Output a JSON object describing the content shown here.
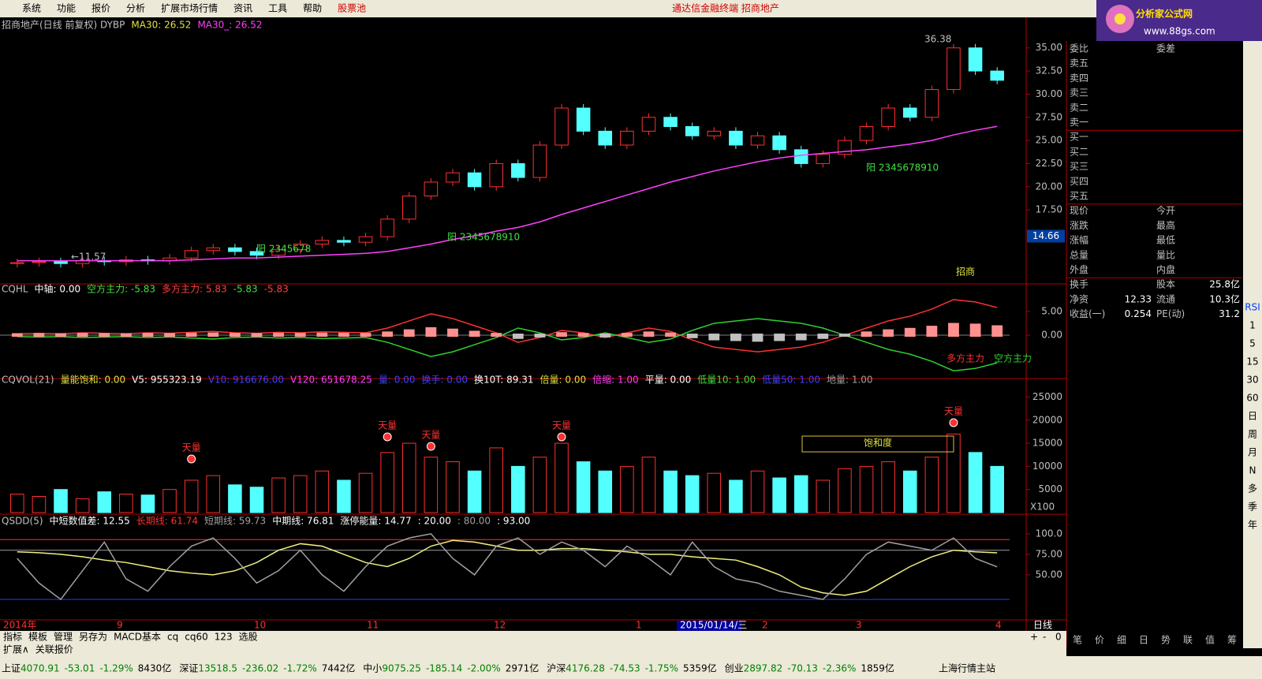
{
  "menu": [
    "系统",
    "功能",
    "报价",
    "分析",
    "扩展市场行情",
    "资讯",
    "工具",
    "帮助",
    "股票池"
  ],
  "title_bar": "通达信金融终端  招商地产",
  "logo": {
    "name": "分析家公式网",
    "url": "www.88gs.com"
  },
  "panels": {
    "price": {
      "header": [
        {
          "text": "招商地产(日线 前复权) DYBP",
          "color": "#c0c0c0"
        },
        {
          "text": "MA30: 26.52",
          "color": "#e0e040"
        },
        {
          "text": "MA30_: 26.52",
          "color": "#ff40ff"
        }
      ],
      "ylim": [
        9.5,
        38.3
      ],
      "yticks": [
        {
          "value": 35,
          "label": "35.00"
        },
        {
          "value": 32.5,
          "label": "32.50"
        },
        {
          "value": 30,
          "label": "30.00"
        },
        {
          "value": 27.5,
          "label": "27.50"
        },
        {
          "value": 25,
          "label": "25.00"
        },
        {
          "value": 22.5,
          "label": "22.50"
        },
        {
          "value": 20,
          "label": "20.00"
        },
        {
          "value": 17.5,
          "label": "17.50"
        }
      ],
      "current_label": "14.66",
      "close": [
        11.8,
        11.9,
        11.7,
        12.0,
        11.9,
        12.1,
        12.0,
        12.3,
        13.1,
        13.4,
        13.0,
        12.6,
        13.2,
        13.8,
        14.2,
        14.0,
        14.6,
        16.5,
        19.0,
        20.5,
        21.5,
        20.0,
        22.5,
        21.0,
        24.5,
        28.5,
        26.0,
        24.5,
        26.0,
        27.5,
        26.5,
        25.5,
        26.0,
        24.5,
        25.5,
        24.0,
        22.5,
        23.5,
        25.0,
        26.5,
        28.5,
        27.5,
        30.5,
        35.0,
        32.5,
        31.5
      ],
      "ma30": [
        12.0,
        12.0,
        12.0,
        12.0,
        12.0,
        12.0,
        12.0,
        12.0,
        12.1,
        12.2,
        12.3,
        12.3,
        12.4,
        12.5,
        12.6,
        12.7,
        12.8,
        13.0,
        13.4,
        13.8,
        14.3,
        14.7,
        15.2,
        15.6,
        16.2,
        17.0,
        17.7,
        18.4,
        19.1,
        19.8,
        20.5,
        21.1,
        21.7,
        22.2,
        22.7,
        23.1,
        23.4,
        23.6,
        23.8,
        24.0,
        24.3,
        24.6,
        25.0,
        25.6,
        26.1,
        26.52
      ],
      "annotations": [
        "36.38",
        "←11.57",
        "阳 2345678",
        "阳 2345678910",
        "阳 2345678910",
        "招商"
      ]
    },
    "cqhl": {
      "header": [
        {
          "text": "CQHL",
          "color": "#c0c0c0"
        },
        {
          "text": "中轴: 0.00",
          "color": "#ffffff"
        },
        {
          "text": "空方主力: -5.83",
          "color": "#40e040"
        },
        {
          "text": "多方主力: 5.83",
          "color": "#ff4040"
        },
        {
          "text": "-5.83",
          "color": "#40e040"
        },
        {
          "text": "-5.83",
          "color": "#ff4040"
        }
      ],
      "ylim": [
        -8.3,
        10.8
      ],
      "yticks": [
        {
          "value": 5,
          "label": "5.00"
        },
        {
          "value": 0,
          "label": "0.00"
        }
      ],
      "series": [
        {
          "name": "多方主力",
          "color": "#ff3030",
          "values": [
            0.3,
            0.4,
            0.3,
            0.5,
            0.4,
            0.3,
            0.5,
            0.4,
            0.6,
            0.8,
            0.5,
            0.4,
            0.6,
            0.5,
            0.7,
            0.6,
            0.5,
            1.5,
            3.0,
            4.5,
            3.5,
            2.0,
            0.5,
            -1.5,
            -0.5,
            1.0,
            0.5,
            -0.5,
            0.5,
            1.5,
            0.8,
            -1.0,
            -2.5,
            -3.0,
            -3.5,
            -3.0,
            -2.5,
            -1.5,
            0.0,
            1.5,
            3.0,
            4.0,
            5.5,
            7.5,
            7.0,
            5.83
          ]
        },
        {
          "name": "空方主力",
          "color": "#30d030",
          "values": [
            -0.3,
            -0.4,
            -0.3,
            -0.5,
            -0.4,
            -0.3,
            -0.5,
            -0.4,
            -0.6,
            -0.8,
            -0.5,
            -0.4,
            -0.6,
            -0.5,
            -0.7,
            -0.6,
            -0.5,
            -1.5,
            -3.0,
            -4.5,
            -3.5,
            -2.0,
            -0.5,
            1.5,
            0.5,
            -1.0,
            -0.5,
            0.5,
            -0.5,
            -1.5,
            -0.8,
            1.0,
            2.5,
            3.0,
            3.5,
            3.0,
            2.5,
            1.5,
            0.0,
            -1.5,
            -3.0,
            -4.0,
            -5.5,
            -7.5,
            -7.0,
            -5.83
          ]
        }
      ]
    },
    "vol": {
      "header": [
        {
          "text": "CQVOL(21)",
          "color": "#c0c0c0"
        },
        {
          "text": "量能饱和: 0.00",
          "color": "#e0e040"
        },
        {
          "text": "V5: 955323.19",
          "color": "#ffffff"
        },
        {
          "text": "V10: 916676.00",
          "color": "#4040ff"
        },
        {
          "text": "V120: 651678.25",
          "color": "#ff40ff"
        },
        {
          "text": "量: 0.00",
          "color": "#4040ff"
        },
        {
          "text": "换手: 0.00",
          "color": "#4040ff"
        },
        {
          "text": "换10T: 89.31",
          "color": "#ffffff"
        },
        {
          "text": "倍量: 0.00",
          "color": "#e0e040"
        },
        {
          "text": "倍缩: 1.00",
          "color": "#ff40ff"
        },
        {
          "text": "平量: 0.00",
          "color": "#ffffff"
        },
        {
          "text": "低量10: 1.00",
          "color": "#40e040"
        },
        {
          "text": "低量50: 1.00",
          "color": "#4040ff"
        },
        {
          "text": "地量: 1.00",
          "color": "#a0a0a0"
        }
      ],
      "ylim": [
        0,
        29000
      ],
      "yticks": [
        25000,
        20000,
        15000,
        10000,
        5000
      ],
      "values": [
        4000,
        3500,
        5000,
        3000,
        4500,
        4000,
        3800,
        5000,
        7000,
        8000,
        6000,
        5500,
        7500,
        8000,
        9000,
        7000,
        8500,
        13000,
        15000,
        12000,
        11000,
        9000,
        14000,
        10000,
        12000,
        15000,
        11000,
        9000,
        10000,
        12000,
        9000,
        8000,
        8500,
        7000,
        9000,
        7500,
        8000,
        7000,
        9500,
        10000,
        11000,
        9000,
        12000,
        17000,
        13000,
        10000
      ],
      "annotations": [
        "天量",
        "天量",
        "天量",
        "天量",
        "天量"
      ],
      "box_label": "饱和度",
      "unit": "X100"
    },
    "qsdd": {
      "header": [
        {
          "text": "QSDD(5)",
          "color": "#c0c0c0"
        },
        {
          "text": "中短数值差: 12.55",
          "color": "#ffffff"
        },
        {
          "text": "长期线: 61.74",
          "color": "#ff3030"
        },
        {
          "text": "短期线: 59.73",
          "color": "#a0a0a0"
        },
        {
          "text": "中期线: 76.81",
          "color": "#ffffff"
        },
        {
          "text": "涨停能量: 14.77",
          "color": "#ffffff"
        },
        {
          "text": ": 20.00",
          "color": "#ffffff"
        },
        {
          "text": ": 80.00",
          "color": "#a0a0a0"
        },
        {
          "text": ": 93.00",
          "color": "#ffffff"
        }
      ],
      "ylim": [
        -4,
        124
      ],
      "yticks": [
        {
          "value": 100,
          "label": "100.0"
        },
        {
          "value": 75,
          "label": "75.00"
        },
        {
          "value": 50,
          "label": "50.00"
        }
      ],
      "series": [
        {
          "name": "中期线",
          "color": "#f0f080",
          "values": [
            78,
            77,
            75,
            72,
            68,
            65,
            60,
            55,
            52,
            50,
            55,
            65,
            80,
            88,
            85,
            75,
            65,
            60,
            70,
            85,
            92,
            90,
            85,
            80,
            80,
            82,
            82,
            80,
            78,
            75,
            75,
            72,
            70,
            68,
            60,
            50,
            35,
            28,
            25,
            30,
            45,
            60,
            72,
            80,
            78,
            76.81
          ]
        },
        {
          "name": "短期线",
          "color": "#a0a0a0",
          "values": [
            70,
            40,
            20,
            55,
            90,
            45,
            30,
            60,
            85,
            95,
            70,
            40,
            55,
            80,
            50,
            30,
            60,
            85,
            95,
            100,
            70,
            50,
            85,
            95,
            75,
            90,
            80,
            60,
            85,
            70,
            50,
            90,
            60,
            45,
            40,
            30,
            25,
            20,
            45,
            75,
            90,
            85,
            80,
            95,
            70,
            59.73
          ]
        }
      ]
    }
  },
  "date_axis": [
    "2014年",
    "9",
    "10",
    "11",
    "12",
    "1",
    "2015/01/14/三",
    "2",
    "3",
    "4"
  ],
  "period": "日线",
  "tabs": [
    "指标",
    "模板",
    "管理",
    "另存为",
    "MACD基本",
    "cq",
    "cq60",
    "123",
    "选股"
  ],
  "zoom": [
    "+",
    "-",
    "0"
  ],
  "sub_tabs": [
    "扩展∧",
    "关联报价"
  ],
  "quote_panel": {
    "rows": [
      {
        "l1": "委比",
        "l2": "委差"
      },
      {
        "l1": "卖五"
      },
      {
        "l1": "卖四"
      },
      {
        "l1": "卖三"
      },
      {
        "l1": "卖二"
      },
      {
        "l1": "卖一"
      },
      {
        "l1": "买一"
      },
      {
        "l1": "买二"
      },
      {
        "l1": "买三"
      },
      {
        "l1": "买四"
      },
      {
        "l1": "买五"
      },
      {
        "l1": "现价",
        "l2": "今开"
      },
      {
        "l1": "涨跌",
        "l2": "最高"
      },
      {
        "l1": "涨幅",
        "l2": "最低"
      },
      {
        "l1": "总量",
        "l2": "量比"
      },
      {
        "l1": "外盘",
        "l2": "内盘"
      },
      {
        "l1": "换手",
        "l2": "股本",
        "v2": "25.8亿"
      },
      {
        "l1": "净资",
        "v1": "12.33",
        "l2": "流通",
        "v2": "10.3亿"
      },
      {
        "l1": "收益(一)",
        "v1": "0.254",
        "l2": "PE(动)",
        "v2": "31.2"
      }
    ],
    "tabs": [
      "笔",
      "价",
      "细",
      "日",
      "势",
      "联",
      "值",
      "筹"
    ]
  },
  "toolbar": [
    "RSI",
    "1",
    "5",
    "15",
    "30",
    "60",
    "日",
    "周",
    "月",
    "N",
    "多",
    "季",
    "年"
  ],
  "index_bar": [
    {
      "name": "上证",
      "value": "4070.91",
      "change": "-53.01",
      "pct": "-1.29%",
      "amount": "8430亿"
    },
    {
      "name": "深证",
      "value": "13518.5",
      "change": "-236.02",
      "pct": "-1.72%",
      "amount": "7442亿"
    },
    {
      "name": "中小",
      "value": "9075.25",
      "change": "-185.14",
      "pct": "-2.00%",
      "amount": "2971亿"
    },
    {
      "name": "沪深",
      "value": "4176.28",
      "change": "-74.53",
      "pct": "-1.75%",
      "amount": "5359亿"
    },
    {
      "name": "创业",
      "value": "2897.82",
      "change": "-70.13",
      "pct": "-2.36%",
      "amount": "1859亿"
    }
  ],
  "server": "上海行情主站"
}
